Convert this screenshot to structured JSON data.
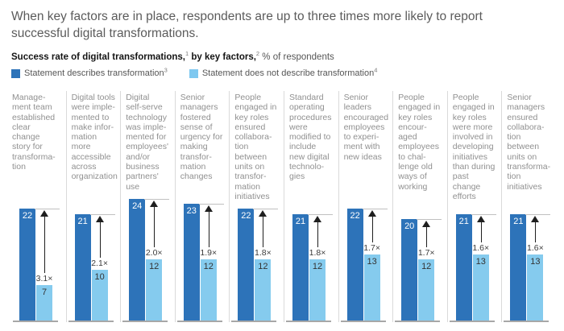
{
  "header": {
    "title": "When key factors are in place, respondents are up to three times more likely to report successful digital transformations."
  },
  "subtitle": {
    "part1": "Success rate of digital transformations,",
    "sup1": "1",
    "part2": " by key factors,",
    "sup2": "2",
    "part3": " % of respondents"
  },
  "legend": {
    "items": [
      {
        "label": "Statement describes transformation",
        "sup": "3",
        "color": "#2d73b9"
      },
      {
        "label": "Statement does not describe transformation",
        "sup": "4",
        "color": "#7ec8f0"
      }
    ]
  },
  "chart_data": {
    "type": "bar",
    "title": "Success rate of digital transformations, by key factors, % of respondents",
    "xlabel": "",
    "ylabel": "% of respondents",
    "ylim": [
      0,
      25
    ],
    "grid": false,
    "legend_position": "top",
    "categories": [
      "Management team established clear change story for transformation",
      "Digital tools were implemented to make information more accessible across organization",
      "Digital self-serve technology was implemented for employees' and/or business partners' use",
      "Senior managers fostered sense of urgency for making transformation changes",
      "People engaged in key roles ensured collaboration between units on transformation initiatives",
      "Standard operating procedures were modified to include new digital technologies",
      "Senior leaders encouraged employees to experiment with new ideas",
      "People engaged in key roles encouraged employees to challenge old ways of working",
      "People engaged in key roles were more involved in developing initiatives than during past change efforts",
      "Senior managers ensured collaboration between units on transformation initiatives"
    ],
    "categories_display": [
      "Manage-\nment team\nestablished\nclear\nchange\nstory for\ntransforma-\ntion",
      "Digital tools\nwere imple-\nmented to\nmake infor-\nmation\nmore\naccessible\nacross\norganization",
      "Digital\nself-serve\ntechnology\nwas imple-\nmented for\nemployees'\nand/or\nbusiness\npartners'\nuse",
      "Senior\nmanagers\nfostered\nsense of\nurgency for\nmaking\ntransfor-\nmation\nchanges",
      "People\nengaged in\nkey roles\nensured\ncollabora-\ntion\nbetween\nunits on\ntransfor-\nmation\ninitiatives",
      "Standard\noperating\nprocedures\nwere\nmodified to\ninclude\nnew digital\ntechnolo-\ngies",
      "Senior\nleaders\nencouraged\nemployees\nto experi-\nment with\nnew ideas",
      "People\nengaged in\nkey roles\nencour-\naged\nemployees\nto chal-\nlenge old\nways of\nworking",
      "People\nengaged in\nkey roles\nwere more\ninvolved in\ndeveloping\ninitiatives\nthan during\npast\nchange\nefforts",
      "Senior\nmanagers\nensured\ncollabora-\ntion\nbetween\nunits on\ntransforma-\ntion\ninitiatives"
    ],
    "series": [
      {
        "name": "Statement describes transformation",
        "color": "#2d73b9",
        "values": [
          22,
          21,
          24,
          23,
          22,
          21,
          22,
          20,
          21,
          21
        ]
      },
      {
        "name": "Statement does not describe transformation",
        "color": "#85cbee",
        "values": [
          7,
          10,
          12,
          12,
          12,
          12,
          13,
          12,
          13,
          13
        ]
      }
    ],
    "multipliers": [
      "3.1×",
      "2.1×",
      "2.0×",
      "1.9×",
      "1.8×",
      "1.8×",
      "1.7×",
      "1.7×",
      "1.6×",
      "1.6×"
    ]
  }
}
